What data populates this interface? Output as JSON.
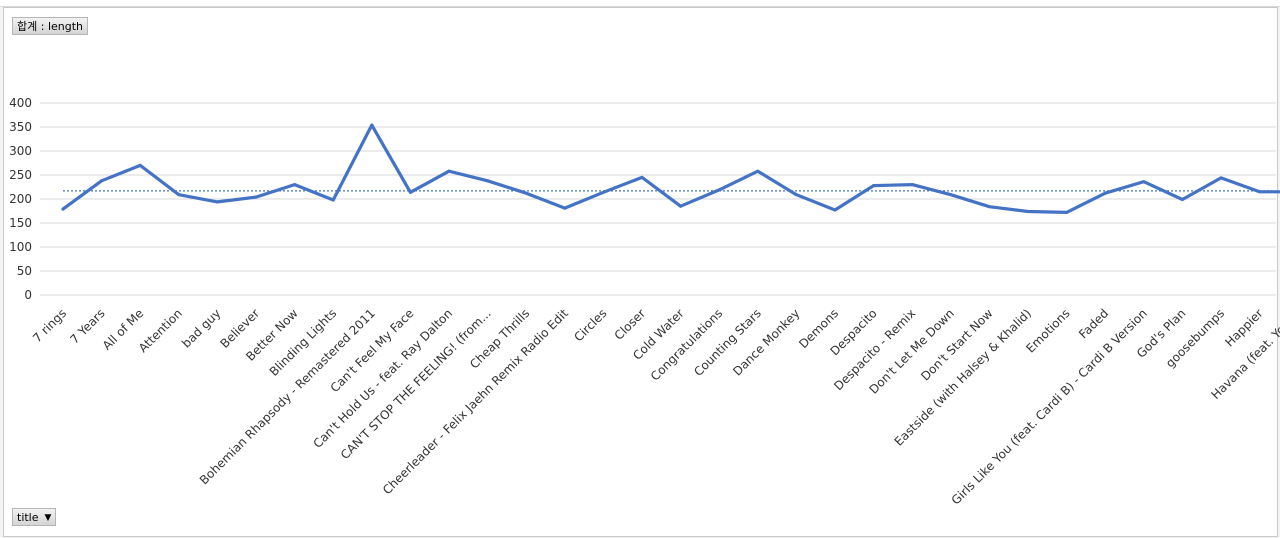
{
  "value_field_button": {
    "label": "합계 : length"
  },
  "axis_field_button": {
    "label": "title",
    "icon": "dropdown-caret-icon"
  },
  "colors": {
    "line": "#4472c4",
    "average": "#4472c4",
    "grid": "#d9d9d9",
    "text": "#333333"
  },
  "chart_data": {
    "type": "line",
    "title": "",
    "xlabel": "",
    "ylabel": "",
    "ylim": [
      0,
      400
    ],
    "yticks": [
      0,
      50,
      100,
      150,
      200,
      250,
      300,
      350,
      400
    ],
    "grid": true,
    "legend": "none",
    "categories": [
      "7 rings",
      "7 Years",
      "All of Me",
      "Attention",
      "bad guy",
      "Believer",
      "Better Now",
      "Blinding Lights",
      "Bohemian Rhapsody - Remastered 2011",
      "Can't Feel My Face",
      "Can't Hold Us - feat. Ray Dalton",
      "CAN'T STOP THE FEELING! (from...",
      "Cheap Thrills",
      "Cheerleader - Felix Jaehn Remix Radio Edit",
      "Circles",
      "Closer",
      "Cold Water",
      "Congratulations",
      "Counting Stars",
      "Dance Monkey",
      "Demons",
      "Despacito",
      "Despacito - Remix",
      "Don't Let Me Down",
      "Don't Start Now",
      "Eastside (with Halsey & Khalid)",
      "Emotions",
      "Faded",
      "Girls Like You (feat. Cardi B) - Cardi B Version",
      "God's Plan",
      "goosebumps",
      "Happier",
      "Havana (feat. Young"
    ],
    "series": [
      {
        "values": [
          179,
          238,
          270,
          209,
          194,
          204,
          230,
          198,
          354,
          214,
          258,
          238,
          212,
          181,
          214,
          245,
          185,
          219,
          258,
          209,
          177,
          228,
          230,
          209,
          184,
          174,
          172,
          212,
          236,
          199,
          244,
          215,
          215
        ]
      }
    ],
    "average_line": 217
  }
}
